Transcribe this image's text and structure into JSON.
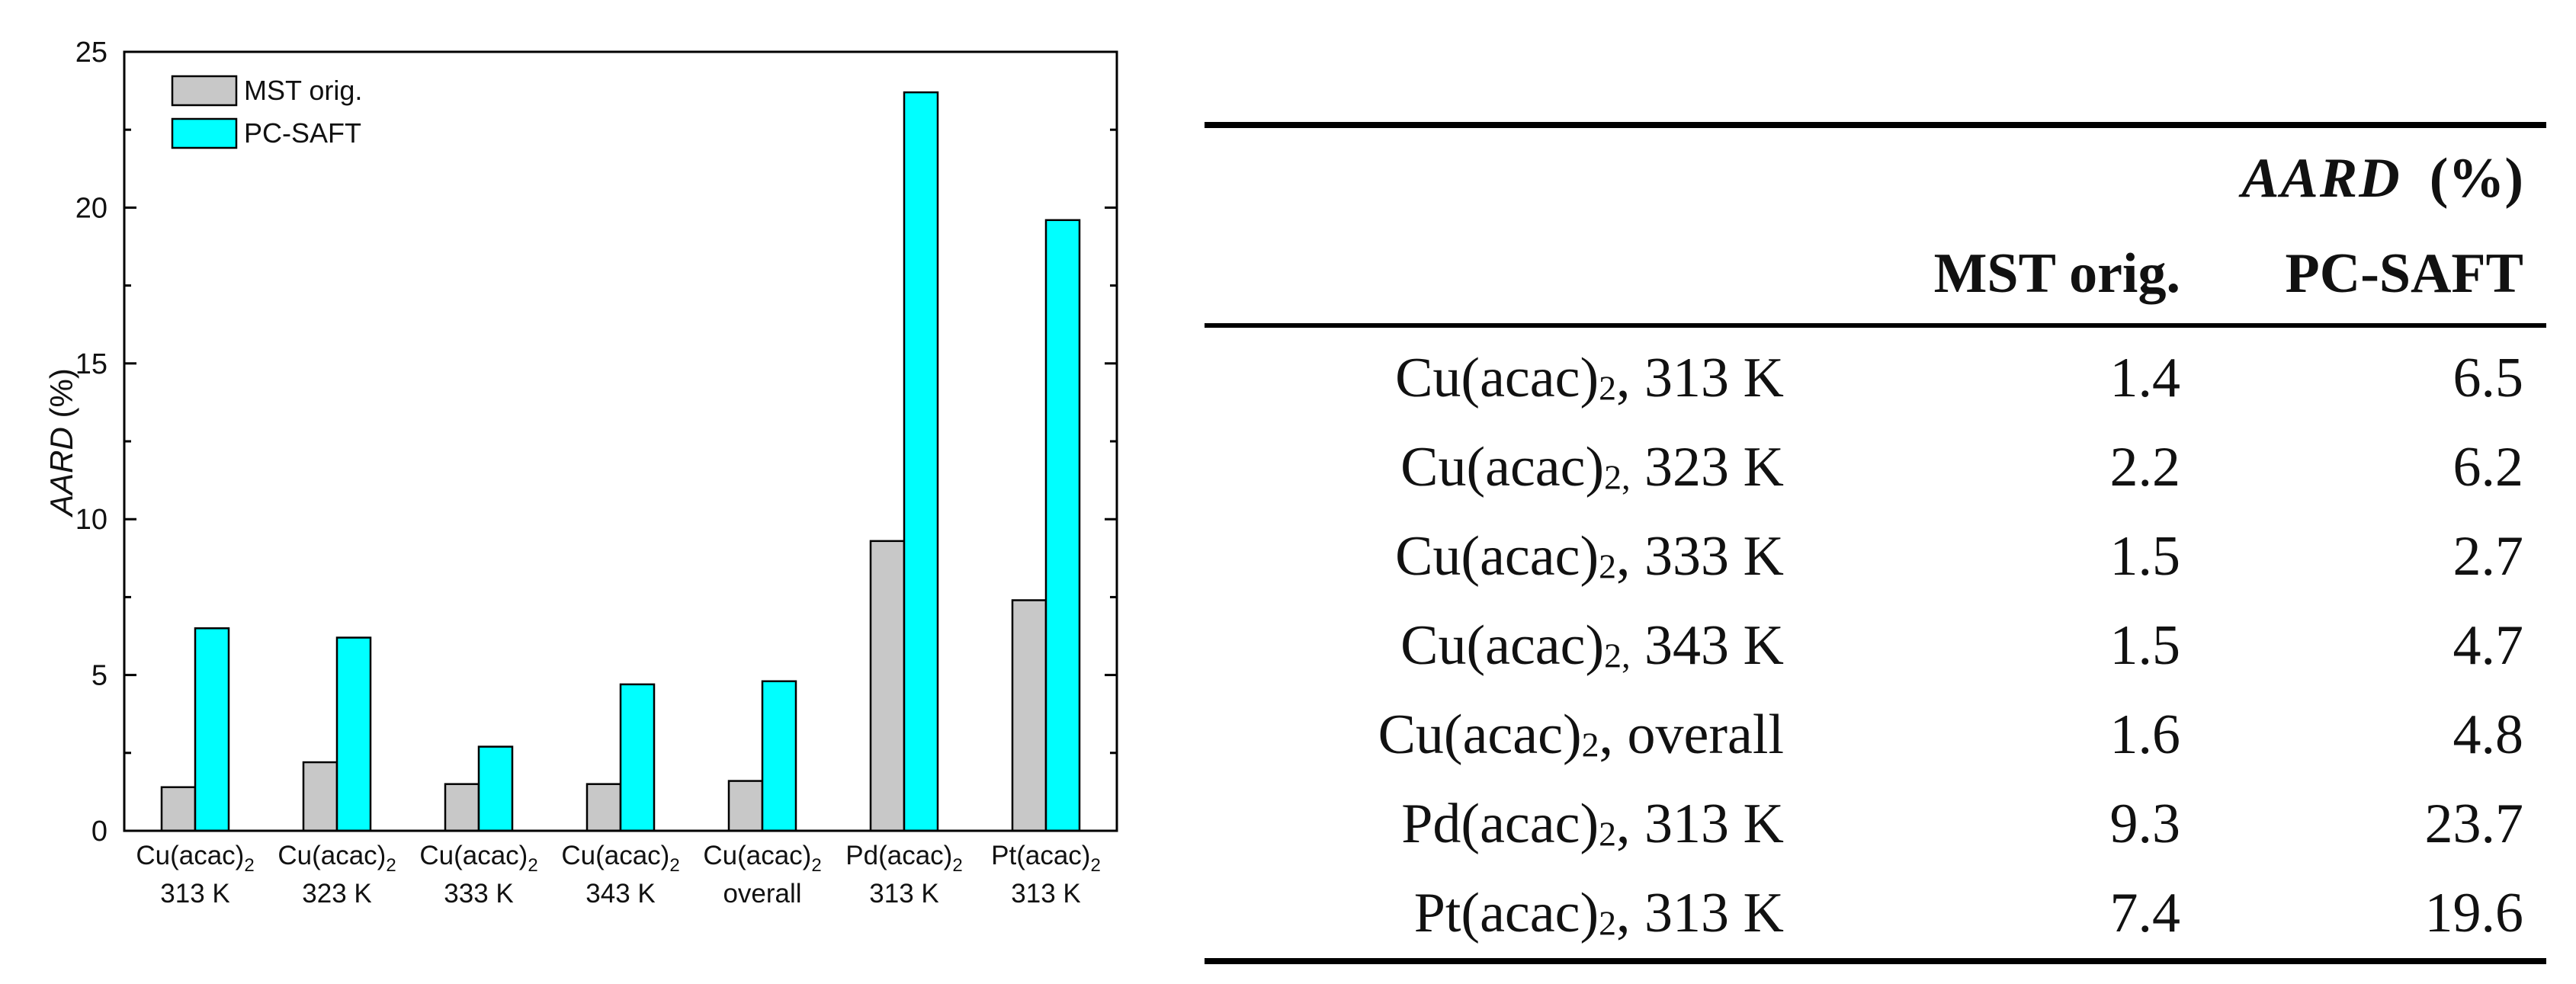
{
  "chart_data": {
    "type": "bar",
    "categories": [
      [
        "Cu(acac)",
        "2",
        "313 K"
      ],
      [
        "Cu(acac)",
        "2",
        "323 K"
      ],
      [
        "Cu(acac)",
        "2",
        "333 K"
      ],
      [
        "Cu(acac)",
        "2",
        "343 K"
      ],
      [
        "Cu(acac)",
        "2",
        "overall"
      ],
      [
        "Pd(acac)",
        "2",
        "313 K"
      ],
      [
        "Pt(acac)",
        "2",
        "313 K"
      ]
    ],
    "series": [
      {
        "name": "MST orig.",
        "color": "#c8c8c8",
        "values": [
          1.4,
          2.2,
          1.5,
          1.5,
          1.6,
          9.3,
          7.4
        ]
      },
      {
        "name": "PC-SAFT",
        "color": "#00ffff",
        "values": [
          6.5,
          6.2,
          2.7,
          4.7,
          4.8,
          23.7,
          19.6
        ]
      }
    ],
    "ylabel_italic": "AARD",
    "ylabel_unit": " (%)",
    "ylim": [
      0,
      25
    ],
    "yticks": [
      "0",
      "5",
      "10",
      "15",
      "20",
      "25"
    ],
    "legend_position": "top-left"
  },
  "table": {
    "header_aard": "AARD",
    "header_unit": "(%)",
    "col_mst": "MST orig.",
    "col_pcsaft": "PC-SAFT",
    "rows": [
      {
        "pre": "Cu(acac)",
        "sub": "2",
        "post": ", 313 K",
        "mst": "1.4",
        "pcsaft": "6.5"
      },
      {
        "pre": "Cu(acac)",
        "sub": "2,",
        "post": " 323 K",
        "mst": "2.2",
        "pcsaft": "6.2"
      },
      {
        "pre": "Cu(acac)",
        "sub": "2",
        "post": ", 333 K",
        "mst": "1.5",
        "pcsaft": "2.7"
      },
      {
        "pre": "Cu(acac)",
        "sub": "2,",
        "post": " 343 K",
        "mst": "1.5",
        "pcsaft": "4.7"
      },
      {
        "pre": "Cu(acac)",
        "sub": "2",
        "post": ", overall",
        "mst": "1.6",
        "pcsaft": "4.8"
      },
      {
        "pre": "Pd(acac)",
        "sub": "2",
        "post": ", 313 K",
        "mst": "9.3",
        "pcsaft": "23.7"
      },
      {
        "pre": "Pt(acac)",
        "sub": "2",
        "post": ", 313 K",
        "mst": "7.4",
        "pcsaft": "19.6"
      }
    ]
  }
}
